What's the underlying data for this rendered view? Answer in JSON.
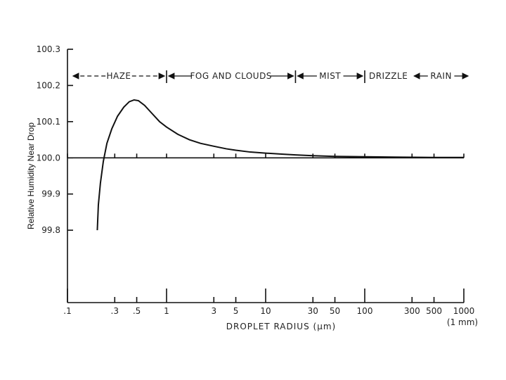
{
  "chart_data": {
    "type": "line",
    "title": "",
    "xlabel": "DROPLET RADIUS (μm)",
    "ylabel": "Relative Humidity Near Drop",
    "xscale": "log",
    "xlim": [
      0.1,
      1000
    ],
    "ylim": [
      99.6,
      100.3
    ],
    "x_ticks": [
      {
        "value": 0.1,
        "label": ".1"
      },
      {
        "value": 0.3,
        "label": ".3"
      },
      {
        "value": 0.5,
        "label": ".5"
      },
      {
        "value": 1,
        "label": "1"
      },
      {
        "value": 3,
        "label": "3"
      },
      {
        "value": 5,
        "label": "5"
      },
      {
        "value": 10,
        "label": "10"
      },
      {
        "value": 30,
        "label": "30"
      },
      {
        "value": 50,
        "label": "50"
      },
      {
        "value": 100,
        "label": "100"
      },
      {
        "value": 300,
        "label": "300"
      },
      {
        "value": 500,
        "label": "500"
      },
      {
        "value": 1000,
        "label": "1000"
      }
    ],
    "x_note": "(1 mm)",
    "y_ticks": [
      {
        "value": 100.3,
        "label": "100.3"
      },
      {
        "value": 100.2,
        "label": "100.2"
      },
      {
        "value": 100.1,
        "label": "100.1"
      },
      {
        "value": 100.0,
        "label": "100.0"
      },
      {
        "value": 99.9,
        "label": "99.9"
      },
      {
        "value": 99.8,
        "label": "99.8"
      }
    ],
    "reference_line": {
      "y": 100.0
    },
    "regimes": [
      {
        "label": "HAZE",
        "from": 0.1,
        "to": 1
      },
      {
        "label": "FOG AND CLOUDS",
        "from": 1,
        "to": 20
      },
      {
        "label": "MIST",
        "from": 20,
        "to": 100
      },
      {
        "label": "DRIZZLE",
        "from": 100,
        "to": 300
      },
      {
        "label": "RAIN",
        "from": 300,
        "to": 1000
      }
    ],
    "series": [
      {
        "x": [
          0.2,
          0.205,
          0.215,
          0.23,
          0.25,
          0.28,
          0.32,
          0.37,
          0.42,
          0.47,
          0.52,
          0.6,
          0.7,
          0.85,
          1.0,
          1.3,
          1.7,
          2.2,
          3,
          4,
          5,
          7,
          10,
          15,
          20,
          30,
          50,
          100,
          200,
          500,
          1000
        ],
        "y": [
          99.8,
          99.87,
          99.93,
          99.99,
          100.04,
          100.08,
          100.115,
          100.14,
          100.155,
          100.16,
          100.158,
          100.145,
          100.125,
          100.1,
          100.085,
          100.065,
          100.05,
          100.04,
          100.032,
          100.025,
          100.021,
          100.016,
          100.013,
          100.01,
          100.008,
          100.006,
          100.004,
          100.003,
          100.002,
          100.001,
          100.001
        ]
      }
    ]
  }
}
